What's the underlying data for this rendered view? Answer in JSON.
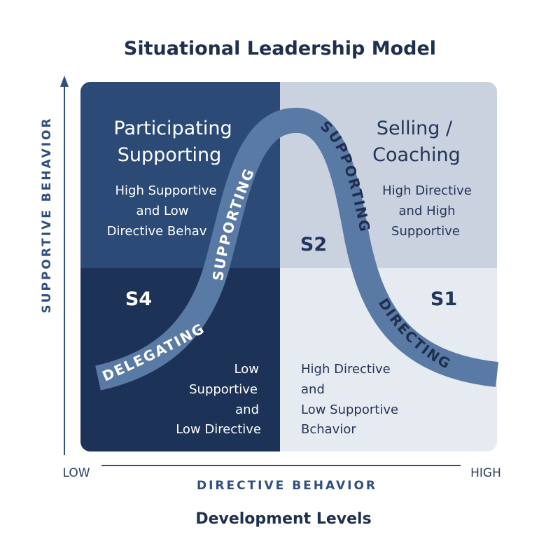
{
  "title": "Situational Leadership Model",
  "subtitle": "Development Levels",
  "axes": {
    "y_label": "SUPPORTIVE BEHAVIOR",
    "x_label": "DIRECTIVE BEHAVIOR",
    "x_low": "LOW",
    "x_high": "HIGH"
  },
  "quadrants": {
    "top_left": {
      "heading": [
        "Participating",
        "Supporting"
      ],
      "description": [
        "High Supportive",
        "and Low",
        "Directive Behav"
      ]
    },
    "top_right": {
      "heading": [
        "Selling /",
        "Coaching"
      ],
      "description": [
        "High Directive",
        "and High",
        "Supportive"
      ],
      "code": "S2"
    },
    "bottom_left": {
      "code": "S4",
      "description": [
        "Low",
        "Supportive",
        "and",
        "Low Directive"
      ]
    },
    "bottom_right": {
      "code": "S1",
      "description": [
        "High Directive",
        "and",
        "Low Supportive",
        "Bchavior"
      ]
    }
  },
  "curve_labels": {
    "delegating": "DELEGATING",
    "supporting_left": "SUPPORTING",
    "supporting_right": "SUPPORTING",
    "directing": "DIRECTING"
  },
  "colors": {
    "dark_navy": "#1c3357",
    "mid_navy": "#2b4a76",
    "light_gray_blue": "#c9d2de",
    "pale_gray_blue": "#e6eaf1",
    "curve": "#5a7aa6",
    "axis": "#2f4f7f"
  }
}
